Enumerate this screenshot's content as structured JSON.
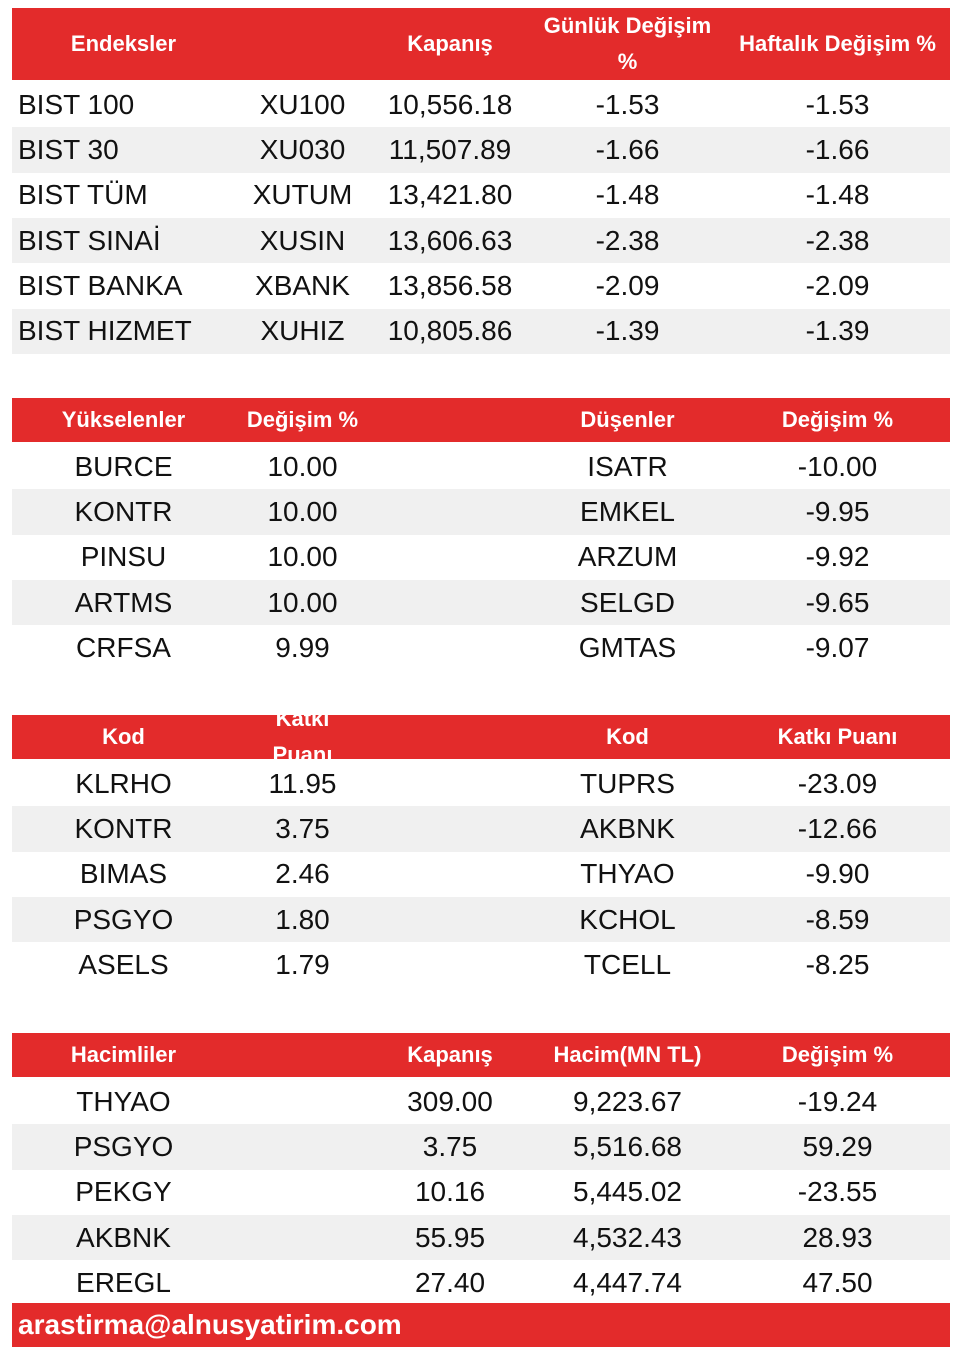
{
  "tables": [
    {
      "header": [
        "Endeksler",
        "Kapanış",
        "Günlük Değişim %",
        "Haftalık Değişim %"
      ],
      "rows": [
        [
          "BIST 100",
          "XU100",
          "10,556.18",
          "-1.53",
          "-1.53"
        ],
        [
          "BIST 30",
          "XU030",
          "11,507.89",
          "-1.66",
          "-1.66"
        ],
        [
          "BIST TÜM",
          "XUTUM",
          "13,421.80",
          "-1.48",
          "-1.48"
        ],
        [
          "BIST SINAİ",
          "XUSIN",
          "13,606.63",
          "-2.38",
          "-2.38"
        ],
        [
          "BIST BANKA",
          "XBANK",
          "13,856.58",
          "-2.09",
          "-2.09"
        ],
        [
          "BIST HIZMET",
          "XUHIZ",
          "10,805.86",
          "-1.39",
          "-1.39"
        ]
      ]
    },
    {
      "header": [
        "Yükselenler",
        "Değişim %",
        "Düşenler",
        "Değişim %"
      ],
      "rows": [
        [
          "BURCE",
          "10.00",
          "ISATR",
          "-10.00"
        ],
        [
          "KONTR",
          "10.00",
          "EMKEL",
          "-9.95"
        ],
        [
          "PINSU",
          "10.00",
          "ARZUM",
          "-9.92"
        ],
        [
          "ARTMS",
          "10.00",
          "SELGD",
          "-9.65"
        ],
        [
          "CRFSA",
          "9.99",
          "GMTAS",
          "-9.07"
        ]
      ]
    },
    {
      "header": [
        "Kod",
        "Katkı Puanı",
        "Kod",
        "Katkı Puanı"
      ],
      "rows": [
        [
          "KLRHO",
          "11.95",
          "TUPRS",
          "-23.09"
        ],
        [
          "KONTR",
          "3.75",
          "AKBNK",
          "-12.66"
        ],
        [
          "BIMAS",
          "2.46",
          "THYAO",
          "-9.90"
        ],
        [
          "PSGYO",
          "1.80",
          "KCHOL",
          "-8.59"
        ],
        [
          "ASELS",
          "1.79",
          "TCELL",
          "-8.25"
        ]
      ]
    },
    {
      "header": [
        "Hacimliler",
        "Kapanış",
        "Hacim(MN TL)",
        "Değişim %"
      ],
      "rows": [
        [
          "THYAO",
          "309.00",
          "9,223.67",
          "-19.24"
        ],
        [
          "PSGYO",
          "3.75",
          "5,516.68",
          "59.29"
        ],
        [
          "PEKGY",
          "10.16",
          "5,445.02",
          "-23.55"
        ],
        [
          "AKBNK",
          "55.95",
          "4,532.43",
          "28.93"
        ],
        [
          "EREGL",
          "27.40",
          "4,447.74",
          "47.50"
        ]
      ]
    }
  ],
  "footer": "arastirma@alnusyatirim.com"
}
